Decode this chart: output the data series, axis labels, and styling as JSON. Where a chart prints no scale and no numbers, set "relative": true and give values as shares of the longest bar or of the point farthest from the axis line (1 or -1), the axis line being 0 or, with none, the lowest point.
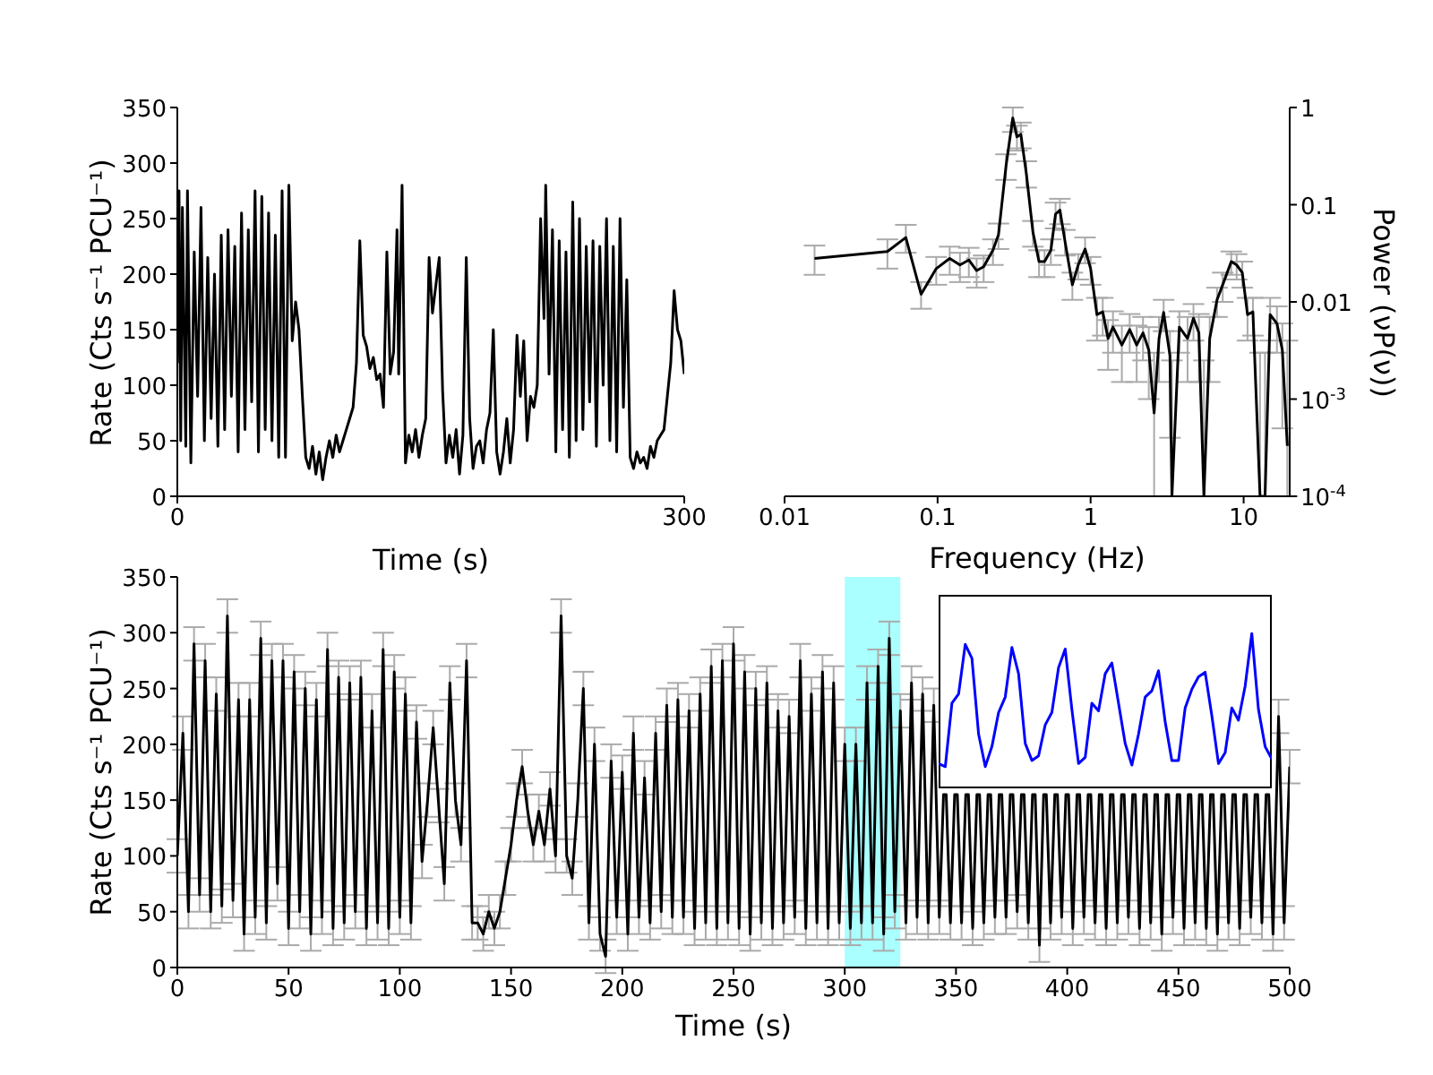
{
  "chart_data": [
    {
      "type": "line",
      "xlabel": "Time (s)",
      "ylabel": "Rate (Cts s⁻¹ PCU⁻¹)",
      "xlim": [
        0,
        300
      ],
      "xticks": [
        0,
        300
      ],
      "ylim": [
        0,
        350
      ],
      "yticks": [
        0,
        50,
        100,
        150,
        200,
        250,
        300,
        350
      ],
      "color": "#000000",
      "x": [
        0,
        1,
        2,
        3,
        5,
        6,
        8,
        10,
        12,
        14,
        16,
        18,
        20,
        22,
        24,
        26,
        28,
        30,
        32,
        34,
        36,
        38,
        40,
        42,
        44,
        46,
        48,
        50,
        52,
        54,
        56,
        58,
        60,
        62,
        64,
        66,
        68,
        70,
        72,
        74,
        76,
        78,
        80,
        82,
        84,
        86,
        88,
        90,
        92,
        94,
        96,
        98,
        100,
        102,
        104,
        106,
        108,
        110,
        112,
        114,
        116,
        118,
        120,
        122,
        124,
        126,
        128,
        130,
        131,
        133,
        135,
        137,
        139,
        141,
        143,
        145,
        147,
        149,
        151,
        153,
        155,
        157,
        159,
        161,
        163,
        165,
        167,
        169,
        171,
        173,
        175,
        177,
        179,
        181,
        183,
        185,
        187,
        189,
        191,
        193,
        195,
        197,
        199,
        201,
        203,
        205,
        207,
        209,
        211,
        213,
        215,
        217,
        218,
        220,
        222,
        224,
        226,
        228,
        230,
        232,
        234,
        236,
        238,
        240,
        242,
        244,
        246,
        248,
        250,
        252,
        254,
        256,
        258,
        260,
        262,
        264,
        266,
        268,
        270,
        272,
        274,
        276,
        278,
        280,
        282,
        284,
        286,
        288,
        290,
        292,
        294,
        296,
        298,
        300
      ],
      "values": [
        120,
        275,
        50,
        260,
        45,
        275,
        30,
        220,
        90,
        260,
        50,
        215,
        70,
        200,
        45,
        235,
        60,
        240,
        90,
        225,
        40,
        255,
        60,
        240,
        85,
        275,
        40,
        270,
        60,
        255,
        50,
        235,
        35,
        275,
        35,
        280,
        140,
        175,
        150,
        90,
        35,
        25,
        45,
        20,
        40,
        15,
        35,
        50,
        35,
        55,
        40,
        50,
        60,
        70,
        80,
        120,
        230,
        145,
        135,
        115,
        125,
        105,
        110,
        80,
        220,
        110,
        130,
        240,
        110,
        280,
        30,
        55,
        40,
        60,
        35,
        55,
        70,
        215,
        165,
        190,
        215,
        95,
        30,
        55,
        35,
        60,
        20,
        55,
        215,
        70,
        25,
        45,
        50,
        30,
        60,
        75,
        150,
        40,
        20,
        40,
        70,
        30,
        60,
        145,
        90,
        140,
        50,
        90,
        80,
        100,
        250,
        160,
        280,
        110,
        240,
        40,
        230,
        60,
        220,
        35,
        265,
        50,
        250,
        60,
        225,
        85,
        230,
        45,
        225,
        100,
        250,
        50,
        225,
        40,
        250,
        80,
        195,
        35,
        25,
        40,
        30,
        35,
        25,
        45,
        35,
        50,
        55,
        60,
        90,
        120,
        185,
        150,
        140,
        110
      ]
    },
    {
      "type": "line",
      "xlabel": "Frequency (Hz)",
      "ylabel": "Power (νP(ν))",
      "log": "xy",
      "xlim": [
        0.01,
        20
      ],
      "xticks": [
        0.01,
        0.1,
        1,
        10
      ],
      "ylim": [
        0.0001,
        1
      ],
      "yticks": [
        1,
        0.1,
        0.01,
        {
          "value": 0.001,
          "label": "10$^{-3}$"
        },
        {
          "value": 0.0001,
          "label": "10$^{-4}$"
        }
      ],
      "color": "#000000",
      "x": [
        0.0157,
        0.047,
        0.062,
        0.078,
        0.098,
        0.12,
        0.14,
        0.16,
        0.18,
        0.2,
        0.23,
        0.25,
        0.28,
        0.31,
        0.33,
        0.35,
        0.38,
        0.42,
        0.46,
        0.5,
        0.55,
        0.59,
        0.63,
        0.68,
        0.76,
        0.83,
        0.92,
        1.0,
        1.1,
        1.2,
        1.3,
        1.4,
        1.6,
        1.8,
        2.0,
        2.2,
        2.4,
        2.6,
        2.8,
        3.0,
        3.3,
        3.4,
        3.8,
        4.3,
        4.7,
        5.1,
        5.5,
        6.0,
        6.7,
        7.3,
        8.3,
        9.0,
        9.8,
        10.6,
        11.5,
        12.8,
        13.8,
        14.9,
        16.5,
        17.9,
        19.3
      ],
      "values": [
        0.028,
        0.033,
        0.046,
        0.012,
        0.022,
        0.028,
        0.024,
        0.027,
        0.021,
        0.023,
        0.034,
        0.049,
        0.25,
        0.78,
        0.5,
        0.53,
        0.21,
        0.052,
        0.026,
        0.026,
        0.034,
        0.08,
        0.088,
        0.042,
        0.015,
        0.024,
        0.035,
        0.022,
        0.0074,
        0.0079,
        0.0042,
        0.0055,
        0.0036,
        0.0052,
        0.0036,
        0.0048,
        0.0032,
        0.00072,
        0.0042,
        0.0078,
        0.0028,
        0.0001,
        0.0055,
        0.0042,
        0.0068,
        0.0048,
        0.0001,
        0.0042,
        0.0105,
        0.015,
        0.026,
        0.024,
        0.02,
        0.0074,
        0.0079,
        0.0001,
        0.0001,
        0.0074,
        0.006,
        0.0032,
        0.00033
      ],
      "errors": [
        [
          0.019,
          0.038
        ],
        [
          0.022,
          0.044
        ],
        [
          0.032,
          0.062
        ],
        [
          0.0085,
          0.016
        ],
        [
          0.015,
          0.029
        ],
        [
          0.019,
          0.037
        ],
        [
          0.016,
          0.032
        ],
        [
          0.018,
          0.036
        ],
        [
          0.014,
          0.028
        ],
        [
          0.016,
          0.03
        ],
        [
          0.024,
          0.044
        ],
        [
          0.035,
          0.064
        ],
        [
          0.18,
          0.33
        ],
        [
          0.56,
          1
        ],
        [
          0.36,
          0.65
        ],
        [
          0.38,
          0.7
        ],
        [
          0.15,
          0.28
        ],
        [
          0.037,
          0.068
        ],
        [
          0.018,
          0.034
        ],
        [
          0.018,
          0.034
        ],
        [
          0.024,
          0.044
        ],
        [
          0.057,
          0.105
        ],
        [
          0.063,
          0.115
        ],
        [
          0.03,
          0.055
        ],
        [
          0.0105,
          0.02
        ],
        [
          0.017,
          0.031
        ],
        [
          0.025,
          0.046
        ],
        [
          0.015,
          0.029
        ],
        [
          0.004,
          0.011
        ],
        [
          0.0045,
          0.011
        ],
        [
          0.002,
          0.0065
        ],
        [
          0.003,
          0.008
        ],
        [
          0.0015,
          0.0057
        ],
        [
          0.003,
          0.0075
        ],
        [
          0.0015,
          0.0057
        ],
        [
          0.0025,
          0.007
        ],
        [
          0.001,
          0.0055
        ],
        [
          0.0001,
          0.003
        ],
        [
          0.0015,
          0.007
        ],
        [
          0.005,
          0.0105
        ],
        [
          0.0004,
          0.005
        ],
        [
          0.0001,
          0.0025
        ],
        [
          0.003,
          0.008
        ],
        [
          0.0015,
          0.007
        ],
        [
          0.004,
          0.0095
        ],
        [
          0.0015,
          0.0075
        ],
        [
          0.0001,
          0.0025
        ],
        [
          0.0015,
          0.007
        ],
        [
          0.007,
          0.014
        ],
        [
          0.01,
          0.02
        ],
        [
          0.019,
          0.033
        ],
        [
          0.017,
          0.031
        ],
        [
          0.014,
          0.026
        ],
        [
          0.004,
          0.011
        ],
        [
          0.0045,
          0.011
        ],
        [
          0.0001,
          0.003
        ],
        [
          0.0001,
          0.003
        ],
        [
          0.004,
          0.011
        ],
        [
          0.003,
          0.009
        ],
        [
          0.0005,
          0.006
        ],
        [
          0.0001,
          0.004
        ]
      ]
    },
    {
      "type": "line",
      "xlabel": "Time (s)",
      "ylabel": "Rate (Cts s⁻¹ PCU⁻¹)",
      "xlim": [
        0,
        500
      ],
      "xticks": [
        0,
        50,
        100,
        150,
        200,
        250,
        300,
        350,
        400,
        450,
        500
      ],
      "ylim": [
        0,
        350
      ],
      "yticks": [
        0,
        50,
        100,
        150,
        200,
        250,
        300,
        350
      ],
      "color": "#000000",
      "bands": [
        {
          "axis": "x",
          "from": 300,
          "to": 325,
          "color": "#aaffff"
        }
      ],
      "x": [
        0,
        2.5,
        5,
        7.5,
        10,
        12.5,
        15,
        17.5,
        20,
        22.5,
        25,
        27.5,
        30,
        32.5,
        35,
        37.5,
        40,
        42.5,
        45,
        47.5,
        50,
        52.5,
        55,
        57.5,
        60,
        62.5,
        65,
        67.5,
        70,
        72.5,
        75,
        77.5,
        80,
        82.5,
        85,
        87.5,
        90,
        92.5,
        95,
        97.5,
        100,
        102.5,
        105,
        107.5,
        110,
        112.5,
        115,
        117.5,
        120,
        122.5,
        125,
        127.5,
        130,
        132.5,
        135,
        137.5,
        140,
        142.5,
        145,
        147.5,
        150,
        152.5,
        155,
        157.5,
        160,
        162.5,
        165,
        167.5,
        170,
        172.5,
        175,
        177.5,
        180,
        182.5,
        185,
        187.5,
        190,
        192.5,
        195,
        197.5,
        200,
        202.5,
        205,
        207.5,
        210,
        212.5,
        215,
        217.5,
        220,
        222.5,
        225,
        227.5,
        230,
        232.5,
        235,
        237.5,
        240,
        242.5,
        245,
        247.5,
        250,
        252.5,
        255,
        257.5,
        260,
        262.5,
        265,
        267.5,
        270,
        272.5,
        275,
        277.5,
        280,
        282.5,
        285,
        287.5,
        290,
        292.5,
        295,
        297.5,
        300,
        302.5,
        305,
        307.5,
        310,
        312.5,
        315,
        317.5,
        320,
        322.5,
        325,
        327.5,
        330,
        332.5,
        335,
        337.5,
        340,
        342.5,
        344.4,
        345.6,
        347.5,
        349.4,
        350.6,
        352.5,
        354.4,
        355.6,
        357.5,
        359.4,
        360.6,
        362.5,
        364.4,
        365.6,
        367.5,
        369.4,
        370.6,
        372.5,
        374.4,
        375.6,
        377.5,
        379.4,
        380.6,
        382.5,
        384.4,
        385.6,
        387.5,
        389.4,
        390.6,
        392.5,
        394.4,
        395.6,
        397.5,
        399.4,
        400.6,
        402.5,
        404.4,
        405.6,
        407.5,
        409.4,
        410.6,
        412.5,
        414.4,
        415.6,
        417.5,
        419.4,
        420.6,
        422.5,
        424.4,
        425.6,
        427.5,
        429.4,
        430.6,
        432.5,
        434.4,
        435.6,
        437.5,
        439.4,
        440.6,
        442.5,
        444.4,
        445.6,
        447.5,
        449.4,
        450.6,
        452.5,
        454.4,
        455.6,
        457.5,
        459.4,
        460.6,
        462.5,
        464.4,
        465.6,
        467.5,
        469.4,
        470.6,
        472.5,
        474.4,
        475.6,
        477.5,
        479.4,
        480.6,
        482.5,
        484.4,
        485.6,
        487.5,
        489.4,
        490.6,
        492.5,
        495,
        497.5,
        500
      ],
      "values": [
        100,
        210,
        50,
        290,
        65,
        275,
        50,
        245,
        55,
        315,
        60,
        240,
        30,
        240,
        45,
        295,
        40,
        275,
        75,
        275,
        35,
        265,
        50,
        250,
        30,
        240,
        45,
        285,
        35,
        260,
        40,
        255,
        50,
        260,
        35,
        230,
        40,
        285,
        35,
        265,
        45,
        245,
        40,
        220,
        95,
        150,
        215,
        145,
        75,
        255,
        150,
        110,
        275,
        40,
        40,
        30,
        50,
        35,
        50,
        80,
        110,
        150,
        180,
        140,
        110,
        140,
        110,
        160,
        100,
        315,
        100,
        80,
        150,
        250,
        40,
        200,
        30,
        10,
        185,
        45,
        175,
        30,
        210,
        45,
        170,
        40,
        210,
        50,
        235,
        45,
        240,
        45,
        230,
        35,
        245,
        40,
        270,
        35,
        275,
        40,
        290,
        35,
        265,
        30,
        250,
        40,
        255,
        35,
        230,
        40,
        225,
        45,
        275,
        35,
        245,
        40,
        265,
        35,
        255,
        40,
        200,
        35,
        200,
        40,
        255,
        40,
        270,
        30,
        295,
        50,
        230,
        40,
        255,
        45,
        245,
        40,
        235,
        45,
        155,
        155,
        40,
        155,
        155,
        40,
        155,
        155,
        35,
        155,
        155,
        40,
        155,
        155,
        45,
        155,
        155,
        45,
        155,
        155,
        50,
        155,
        155,
        40,
        155,
        155,
        20,
        155,
        155,
        40,
        155,
        155,
        45,
        155,
        155,
        35,
        155,
        155,
        45,
        155,
        155,
        40,
        155,
        155,
        35,
        155,
        155,
        40,
        155,
        155,
        45,
        155,
        155,
        35,
        155,
        155,
        40,
        155,
        155,
        30,
        155,
        155,
        45,
        155,
        155,
        35,
        155,
        155,
        40,
        155,
        155,
        35,
        155,
        155,
        30,
        155,
        155,
        40,
        155,
        155,
        35,
        155,
        155,
        45,
        155,
        155,
        40,
        155,
        155,
        30,
        225,
        40,
        180
      ],
      "errors": [
        15,
        15,
        15,
        15,
        15,
        15,
        15,
        15,
        15,
        15,
        15,
        15,
        15,
        15,
        15,
        15,
        15,
        15,
        15,
        15,
        15,
        15,
        15,
        15,
        15,
        15,
        15,
        15,
        15,
        15,
        15,
        15,
        15,
        15,
        15,
        15,
        15,
        15,
        15,
        15,
        15,
        15,
        15,
        15,
        15,
        15,
        15,
        15,
        15,
        15,
        15,
        15,
        15,
        15,
        15,
        15,
        15,
        15,
        15,
        15,
        15,
        15,
        15,
        15,
        15,
        15,
        15,
        15,
        15,
        15,
        15,
        15,
        15,
        15,
        15,
        15,
        15,
        15,
        15,
        15,
        15,
        15,
        15,
        15,
        15,
        15,
        15,
        15,
        15,
        15,
        15,
        15,
        15,
        15,
        15,
        15,
        15,
        15,
        15,
        15,
        15,
        15,
        15,
        15,
        15,
        15,
        15,
        15,
        15,
        15,
        15,
        15,
        15,
        15,
        15,
        15,
        15,
        15,
        15,
        15,
        15,
        15,
        15,
        15,
        15,
        15,
        15,
        15,
        15,
        15,
        15,
        15,
        15,
        15,
        15,
        15,
        15,
        15,
        null,
        null,
        15,
        null,
        null,
        15,
        null,
        null,
        15,
        null,
        null,
        15,
        null,
        null,
        15,
        null,
        null,
        15,
        null,
        null,
        15,
        null,
        null,
        15,
        null,
        null,
        15,
        null,
        null,
        15,
        null,
        null,
        15,
        null,
        null,
        15,
        null,
        null,
        15,
        null,
        null,
        15,
        null,
        null,
        15,
        null,
        null,
        15,
        null,
        null,
        15,
        null,
        null,
        15,
        null,
        null,
        15,
        null,
        null,
        15,
        null,
        null,
        15,
        null,
        null,
        15,
        null,
        null,
        15,
        null,
        null,
        15,
        null,
        null,
        15,
        null,
        null,
        15,
        null,
        null,
        15,
        null,
        null,
        15,
        null,
        null,
        15,
        null,
        null,
        15,
        15,
        15,
        15
      ]
    },
    {
      "type": "line",
      "relative": true,
      "color": "#0000ff",
      "categories": [
        null,
        null,
        null,
        null,
        null,
        null,
        null,
        null,
        null,
        null,
        null,
        null,
        null,
        null,
        null,
        null,
        null,
        null,
        null,
        null,
        null,
        null,
        null,
        null,
        null,
        null,
        null,
        null,
        null,
        null,
        null,
        null,
        null,
        null,
        null,
        null,
        null,
        null,
        null,
        null,
        null,
        null,
        null,
        null,
        null,
        null,
        null,
        null,
        null,
        null,
        null
      ],
      "values": [
        0.16,
        0.14,
        0.55,
        0.61,
        0.93,
        0.84,
        0.35,
        0.14,
        0.27,
        0.49,
        0.59,
        0.91,
        0.74,
        0.29,
        0.18,
        0.21,
        0.41,
        0.49,
        0.78,
        0.9,
        0.51,
        0.16,
        0.2,
        0.55,
        0.5,
        0.74,
        0.81,
        0.55,
        0.29,
        0.15,
        0.35,
        0.59,
        0.63,
        0.76,
        0.43,
        0.18,
        0.18,
        0.52,
        0.64,
        0.72,
        0.75,
        0.47,
        0.16,
        0.23,
        0.52,
        0.44,
        0.66,
        1,
        0.51,
        0.27,
        0.19
      ]
    }
  ]
}
